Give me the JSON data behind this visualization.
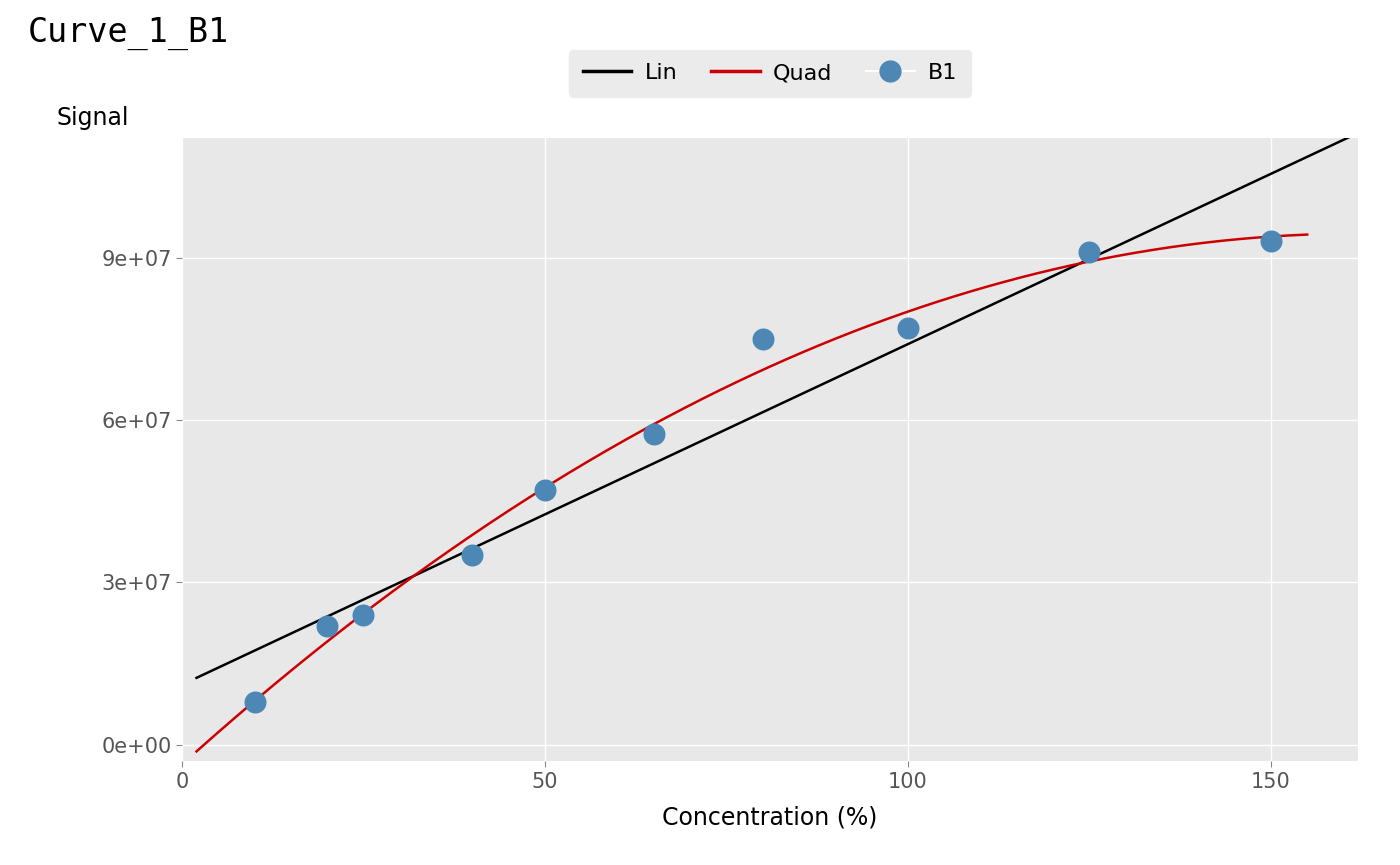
{
  "title": "Curve_1_B1",
  "xlabel": "Concentration (%)",
  "ylabel": "Signal",
  "plot_bg_color": "#E8E8E8",
  "fig_bg_color": "#FFFFFF",
  "scatter_x": [
    10,
    20,
    25,
    40,
    50,
    65,
    80,
    100,
    125,
    150
  ],
  "scatter_y": [
    8000000,
    22000000,
    24000000,
    35000000,
    47000000,
    57500000,
    75000000,
    77000000,
    91000000,
    93000000
  ],
  "scatter_color": "#4C87B5",
  "scatter_size": 220,
  "xlim": [
    2,
    162
  ],
  "ylim": [
    -3000000,
    112000000
  ],
  "xticks": [
    0,
    50,
    100,
    150
  ],
  "yticks": [
    0,
    30000000,
    60000000,
    90000000
  ],
  "ytick_labels": [
    "0e+00",
    "3e+07",
    "6e+07",
    "9e+07"
  ],
  "xtick_labels": [
    "0",
    "50",
    "100",
    "150"
  ],
  "lin_color": "#000000",
  "quad_color": "#CC0000",
  "lin_lw": 1.8,
  "quad_lw": 1.8,
  "title_fontsize": 24,
  "axis_label_fontsize": 17,
  "tick_fontsize": 15,
  "legend_fontsize": 16,
  "legend_bg": "#EBEBEB",
  "grid_color": "#FFFFFF",
  "grid_lw": 1.0
}
